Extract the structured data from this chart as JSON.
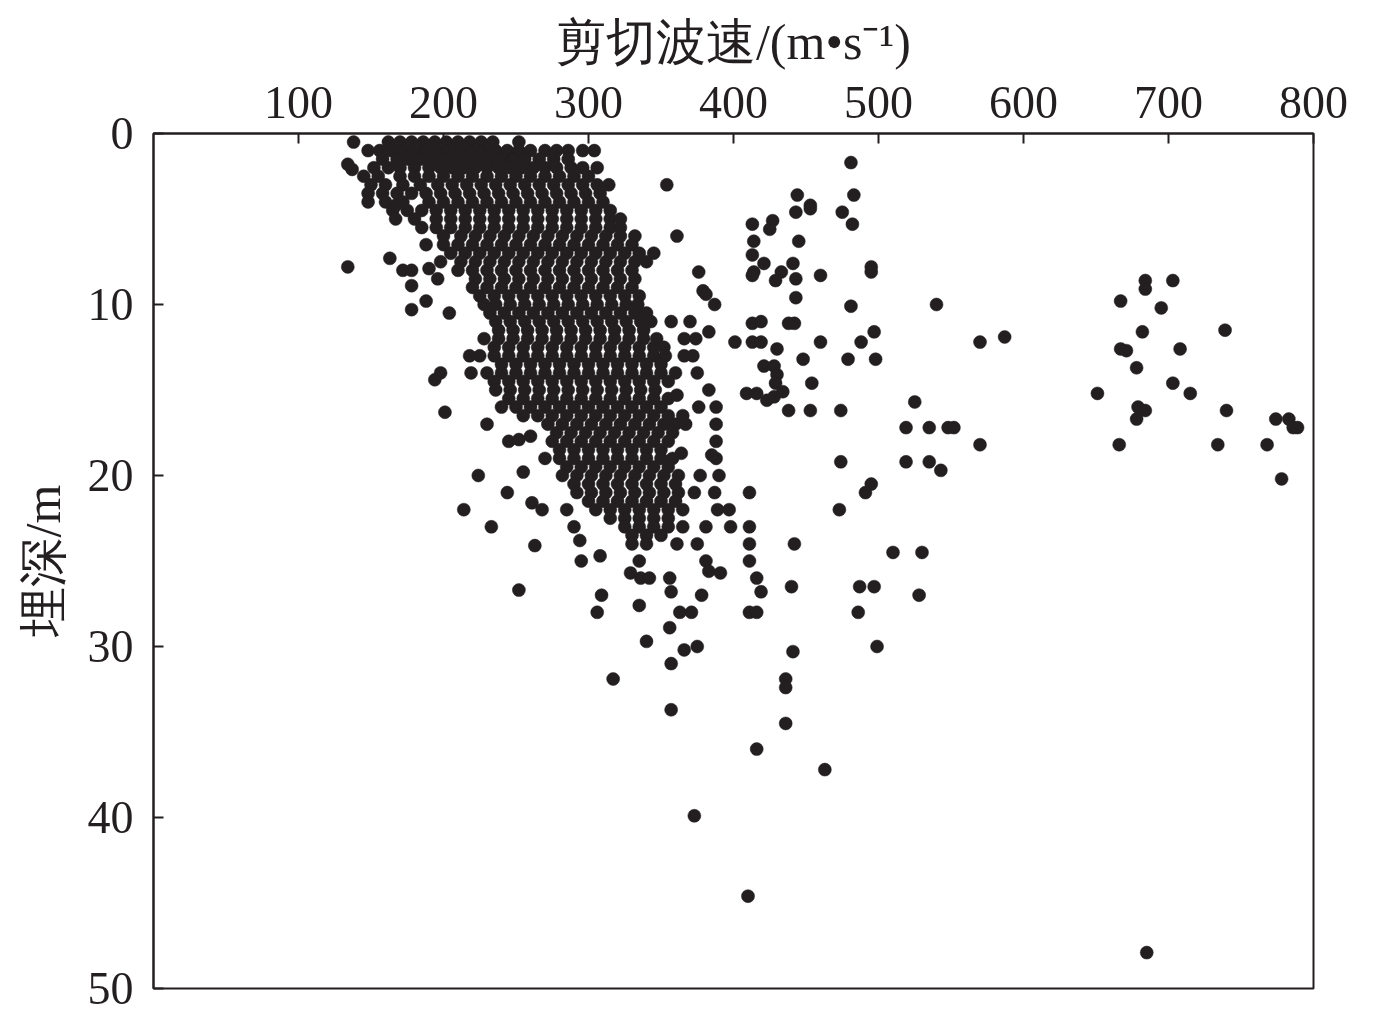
{
  "chart_data": {
    "type": "scatter",
    "xlabel": "剪切波速/(m•s⁻¹)",
    "ylabel": "埋深/m",
    "xlim": [
      0,
      800
    ],
    "ylim": [
      50,
      0
    ],
    "xticks": [
      100,
      200,
      300,
      400,
      500,
      600,
      700,
      800
    ],
    "yticks": [
      0,
      10,
      20,
      30,
      40,
      50
    ],
    "grid": false,
    "marker": "circle",
    "series": [
      {
        "color": "#231f20",
        "x": [
          138,
          162,
          170,
          178,
          186,
          194,
          202,
          210,
          218,
          226,
          234,
          252,
          148,
          156,
          164,
          172,
          180,
          188,
          196,
          204,
          212,
          220,
          228,
          236,
          244,
          252,
          260,
          270,
          278,
          286,
          296,
          304,
          158,
          168,
          176,
          184,
          192,
          200,
          208,
          216,
          224,
          232,
          240,
          248,
          256,
          266,
          276,
          286,
          152,
          162,
          170,
          180,
          190,
          198,
          206,
          214,
          222,
          230,
          238,
          246,
          254,
          262,
          270,
          278,
          288,
          296,
          306,
          145,
          155,
          170,
          180,
          190,
          200,
          210,
          220,
          230,
          240,
          250,
          260,
          270,
          280,
          290,
          300,
          150,
          160,
          172,
          184,
          196,
          206,
          216,
          226,
          236,
          246,
          256,
          266,
          276,
          286,
          296,
          306,
          314,
          354,
          148,
          158,
          168,
          178,
          188,
          198,
          208,
          218,
          228,
          238,
          248,
          258,
          268,
          278,
          288,
          298,
          308,
          148,
          160,
          172,
          190,
          200,
          210,
          220,
          230,
          240,
          250,
          260,
          270,
          280,
          290,
          300,
          310,
          165,
          175,
          185,
          195,
          205,
          215,
          225,
          235,
          245,
          255,
          265,
          275,
          285,
          295,
          305,
          315,
          167,
          180,
          195,
          205,
          215,
          225,
          235,
          245,
          255,
          265,
          275,
          285,
          295,
          305,
          315,
          322,
          185,
          195,
          205,
          215,
          225,
          235,
          245,
          255,
          265,
          275,
          285,
          295,
          305,
          315,
          322,
          200,
          212,
          222,
          232,
          242,
          252,
          262,
          272,
          282,
          292,
          302,
          312,
          322,
          332,
          361,
          200,
          210,
          220,
          230,
          240,
          250,
          260,
          270,
          280,
          290,
          300,
          310,
          320,
          330,
          205,
          215,
          225,
          235,
          245,
          255,
          265,
          275,
          285,
          295,
          305,
          315,
          325,
          335,
          345,
          212,
          222,
          232,
          242,
          252,
          262,
          272,
          282,
          292,
          302,
          312,
          322,
          332,
          340,
          210,
          220,
          230,
          240,
          250,
          260,
          270,
          280,
          290,
          300,
          310,
          320,
          330,
          222,
          232,
          242,
          252,
          262,
          272,
          282,
          292,
          302,
          312,
          322,
          332,
          220,
          230,
          240,
          250,
          260,
          270,
          280,
          290,
          300,
          310,
          320,
          330,
          225,
          235,
          245,
          255,
          265,
          275,
          285,
          295,
          305,
          315,
          325,
          335,
          228,
          236,
          246,
          256,
          266,
          276,
          286,
          296,
          306,
          316,
          326,
          334,
          232,
          242,
          252,
          262,
          272,
          282,
          292,
          302,
          312,
          322,
          332,
          340,
          236,
          246,
          256,
          266,
          276,
          286,
          296,
          306,
          316,
          326,
          336,
          343,
          238,
          248,
          258,
          268,
          278,
          288,
          298,
          308,
          318,
          328,
          338,
          228,
          238,
          248,
          258,
          268,
          278,
          288,
          298,
          308,
          318,
          328,
          338,
          347,
          235,
          245,
          255,
          265,
          275,
          285,
          295,
          305,
          315,
          325,
          335,
          345,
          352,
          235,
          245,
          255,
          265,
          275,
          285,
          295,
          305,
          315,
          325,
          335,
          345,
          353,
          240,
          250,
          260,
          270,
          280,
          290,
          300,
          310,
          320,
          330,
          340,
          350,
          230,
          240,
          250,
          260,
          270,
          280,
          290,
          300,
          310,
          320,
          330,
          340,
          350,
          360,
          235,
          245,
          255,
          265,
          275,
          285,
          295,
          305,
          315,
          325,
          335,
          345,
          355,
          236,
          246,
          256,
          266,
          276,
          286,
          296,
          306,
          316,
          326,
          336,
          346,
          245,
          255,
          265,
          275,
          285,
          295,
          305,
          315,
          325,
          335,
          345,
          355,
          240,
          250,
          260,
          270,
          280,
          290,
          300,
          310,
          320,
          330,
          340,
          350,
          255,
          265,
          275,
          285,
          295,
          305,
          315,
          325,
          335,
          345,
          355,
          365,
          272,
          282,
          292,
          302,
          312,
          322,
          332,
          342,
          352,
          360,
          278,
          288,
          298,
          308,
          318,
          328,
          338,
          348,
          358,
          275,
          285,
          295,
          305,
          315,
          325,
          335,
          345,
          355,
          280,
          290,
          300,
          310,
          320,
          330,
          340,
          350,
          270,
          280,
          290,
          300,
          310,
          320,
          330,
          340,
          350,
          358,
          285,
          295,
          305,
          315,
          325,
          335,
          345,
          355,
          282,
          292,
          302,
          312,
          322,
          332,
          342,
          352,
          362,
          290,
          300,
          310,
          320,
          330,
          340,
          350,
          360,
          292,
          302,
          312,
          322,
          332,
          342,
          352,
          362,
          300,
          310,
          320,
          330,
          340,
          350,
          360,
          305,
          315,
          325,
          335,
          345,
          355,
          365,
          315,
          325,
          335,
          345,
          355,
          325,
          335,
          345,
          355,
          365,
          330,
          340,
          350,
          330,
          340,
          134,
          137,
          167,
          188,
          134,
          163,
          172,
          178,
          178,
          190,
          198,
          196,
          188,
          178,
          204,
          198,
          194,
          201,
          219,
          230,
          245,
          252,
          260,
          218,
          225,
          224,
          255,
          214,
          233,
          244,
          252,
          263,
          261,
          268,
          285,
          290,
          294,
          295,
          308,
          309,
          306,
          317,
          335,
          335,
          329,
          336,
          342,
          340,
          356,
          357,
          356,
          357,
          357,
          366,
          375,
          373,
          363,
          371,
          378,
          361,
          375,
          381,
          383,
          391,
          381,
          398,
          389,
          397,
          387,
          373,
          411,
          411,
          411,
          411,
          416,
          419,
          411,
          416,
          416,
          410,
          442,
          440,
          441,
          436,
          436,
          436,
          463,
          473,
          491,
          495,
          510,
          530,
          487,
          497,
          486,
          528,
          499,
          685,
          387,
          357,
          370,
          383,
          366,
          374,
          366,
          372,
          375,
          383,
          361,
          376,
          388,
          367,
          388,
          388,
          364,
          388,
          377,
          390,
          376,
          379,
          381,
          385,
          481,
          483,
          444,
          453,
          453,
          443,
          475,
          482,
          427,
          425,
          413,
          414,
          445,
          413,
          421,
          441,
          495,
          495,
          414,
          413,
          433,
          429,
          443,
          460,
          443,
          481,
          540,
          413,
          419,
          438,
          442,
          497,
          401,
          413,
          419,
          460,
          488,
          570,
          587,
          430,
          448,
          479,
          498,
          421,
          428,
          430,
          429,
          454,
          409,
          416,
          423,
          428,
          434,
          438,
          453,
          474,
          525,
          519,
          535,
          548,
          552,
          570,
          474,
          519,
          535,
          543,
          684,
          684,
          703,
          667,
          695,
          682,
          739,
          667,
          671,
          708,
          678,
          703,
          715,
          651,
          679,
          684,
          678,
          740,
          666,
          734,
          768,
          774,
          783,
          786,
          789,
          778
        ],
        "values": [
          0.5,
          0.5,
          0.5,
          0.5,
          0.5,
          0.5,
          0.5,
          0.5,
          0.5,
          0.5,
          0.5,
          0.5,
          1,
          1,
          1,
          1,
          1,
          1,
          1,
          1,
          1,
          1,
          1,
          1,
          1,
          1,
          1,
          1,
          1,
          1,
          1,
          1,
          1.5,
          1.5,
          1.5,
          1.5,
          1.5,
          1.5,
          1.5,
          1.5,
          1.5,
          1.5,
          1.5,
          1.5,
          1.5,
          1.5,
          1.5,
          1.5,
          2,
          2,
          2,
          2,
          2,
          2,
          2,
          2,
          2,
          2,
          2,
          2,
          2,
          2,
          2,
          2,
          2,
          2,
          2,
          2.5,
          2.5,
          2.5,
          2.5,
          2.5,
          2.5,
          2.5,
          2.5,
          2.5,
          2.5,
          2.5,
          2.5,
          2.5,
          2.5,
          2.5,
          2.5,
          3,
          3,
          3,
          3,
          3,
          3,
          3,
          3,
          3,
          3,
          3,
          3,
          3,
          3,
          3,
          3,
          3,
          3,
          3.5,
          3.5,
          3.5,
          3.5,
          3.5,
          3.5,
          3.5,
          3.5,
          3.5,
          3.5,
          3.5,
          3.5,
          3.5,
          3.5,
          3.5,
          3.5,
          3.5,
          4,
          4,
          4,
          4,
          4,
          4,
          4,
          4,
          4,
          4,
          4,
          4,
          4,
          4,
          4,
          4,
          4.5,
          4.5,
          4.5,
          4.5,
          4.5,
          4.5,
          4.5,
          4.5,
          4.5,
          4.5,
          4.5,
          4.5,
          4.5,
          4.5,
          4.5,
          4.5,
          5,
          5,
          5,
          5,
          5,
          5,
          5,
          5,
          5,
          5,
          5,
          5,
          5,
          5,
          5,
          5,
          5.5,
          5.5,
          5.5,
          5.5,
          5.5,
          5.5,
          5.5,
          5.5,
          5.5,
          5.5,
          5.5,
          5.5,
          5.5,
          5.5,
          5.5,
          6,
          6,
          6,
          6,
          6,
          6,
          6,
          6,
          6,
          6,
          6,
          6,
          6,
          6,
          6,
          6.5,
          6.5,
          6.5,
          6.5,
          6.5,
          6.5,
          6.5,
          6.5,
          6.5,
          6.5,
          6.5,
          6.5,
          6.5,
          6.5,
          7,
          7,
          7,
          7,
          7,
          7,
          7,
          7,
          7,
          7,
          7,
          7,
          7,
          7,
          7,
          7.5,
          7.5,
          7.5,
          7.5,
          7.5,
          7.5,
          7.5,
          7.5,
          7.5,
          7.5,
          7.5,
          7.5,
          7.5,
          7.5,
          8,
          8,
          8,
          8,
          8,
          8,
          8,
          8,
          8,
          8,
          8,
          8,
          8,
          8.5,
          8.5,
          8.5,
          8.5,
          8.5,
          8.5,
          8.5,
          8.5,
          8.5,
          8.5,
          8.5,
          8.5,
          9,
          9,
          9,
          9,
          9,
          9,
          9,
          9,
          9,
          9,
          9,
          9,
          9.5,
          9.5,
          9.5,
          9.5,
          9.5,
          9.5,
          9.5,
          9.5,
          9.5,
          9.5,
          9.5,
          9.5,
          10,
          10,
          10,
          10,
          10,
          10,
          10,
          10,
          10,
          10,
          10,
          10,
          10.5,
          10.5,
          10.5,
          10.5,
          10.5,
          10.5,
          10.5,
          10.5,
          10.5,
          10.5,
          10.5,
          10.5,
          11,
          11,
          11,
          11,
          11,
          11,
          11,
          11,
          11,
          11,
          11,
          11,
          11.5,
          11.5,
          11.5,
          11.5,
          11.5,
          11.5,
          11.5,
          11.5,
          11.5,
          11.5,
          11.5,
          12,
          12,
          12,
          12,
          12,
          12,
          12,
          12,
          12,
          12,
          12,
          12,
          12,
          12.5,
          12.5,
          12.5,
          12.5,
          12.5,
          12.5,
          12.5,
          12.5,
          12.5,
          12.5,
          12.5,
          12.5,
          12.5,
          13,
          13,
          13,
          13,
          13,
          13,
          13,
          13,
          13,
          13,
          13,
          13,
          13,
          13.5,
          13.5,
          13.5,
          13.5,
          13.5,
          13.5,
          13.5,
          13.5,
          13.5,
          13.5,
          13.5,
          13.5,
          14,
          14,
          14,
          14,
          14,
          14,
          14,
          14,
          14,
          14,
          14,
          14,
          14,
          14,
          14.5,
          14.5,
          14.5,
          14.5,
          14.5,
          14.5,
          14.5,
          14.5,
          14.5,
          14.5,
          14.5,
          14.5,
          14.5,
          15,
          15,
          15,
          15,
          15,
          15,
          15,
          15,
          15,
          15,
          15,
          15,
          15.5,
          15.5,
          15.5,
          15.5,
          15.5,
          15.5,
          15.5,
          15.5,
          15.5,
          15.5,
          15.5,
          15.5,
          16,
          16,
          16,
          16,
          16,
          16,
          16,
          16,
          16,
          16,
          16,
          16,
          16.5,
          16.5,
          16.5,
          16.5,
          16.5,
          16.5,
          16.5,
          16.5,
          16.5,
          16.5,
          16.5,
          16.5,
          17,
          17,
          17,
          17,
          17,
          17,
          17,
          17,
          17,
          17,
          17.5,
          17.5,
          17.5,
          17.5,
          17.5,
          17.5,
          17.5,
          17.5,
          17.5,
          18,
          18,
          18,
          18,
          18,
          18,
          18,
          18,
          18,
          18.5,
          18.5,
          18.5,
          18.5,
          18.5,
          18.5,
          18.5,
          18.5,
          19,
          19,
          19,
          19,
          19,
          19,
          19,
          19,
          19,
          19,
          19.5,
          19.5,
          19.5,
          19.5,
          19.5,
          19.5,
          19.5,
          19.5,
          20,
          20,
          20,
          20,
          20,
          20,
          20,
          20,
          20,
          20.5,
          20.5,
          20.5,
          20.5,
          20.5,
          20.5,
          20.5,
          20.5,
          21,
          21,
          21,
          21,
          21,
          21,
          21,
          21,
          21.5,
          21.5,
          21.5,
          21.5,
          21.5,
          21.5,
          21.5,
          22,
          22,
          22,
          22,
          22,
          22,
          22,
          22.5,
          22.5,
          22.5,
          22.5,
          22.5,
          23,
          23,
          23,
          23,
          23,
          23.5,
          23.5,
          23.5,
          24,
          24,
          1.8,
          2.1,
          4.2,
          6.5,
          7.8,
          7.3,
          8.0,
          8.0,
          8.9,
          7.9,
          7.5,
          8.5,
          9.8,
          10.3,
          10.5,
          14.0,
          14.4,
          16.3,
          14.0,
          17.0,
          18.0,
          17.9,
          17.7,
          13.0,
          13.0,
          20.0,
          19.8,
          22.0,
          23.0,
          21.0,
          26.7,
          24.1,
          21.6,
          22.0,
          22.0,
          23.0,
          23.8,
          25.0,
          24.7,
          27.0,
          28.0,
          31.9,
          27.6,
          25.0,
          25.7,
          26.0,
          26.0,
          29.7,
          26.0,
          26.8,
          28.9,
          31.0,
          33.7,
          30.2,
          30.0,
          39.9,
          28.0,
          28.0,
          27.0,
          24.0,
          24.0,
          25.0,
          25.6,
          25.7,
          23.0,
          23.0,
          22.0,
          22.0,
          21.0,
          21.0,
          21.0,
          23.0,
          24.0,
          25.0,
          26.0,
          26.8,
          28.0,
          28.0,
          36.0,
          44.6,
          24.0,
          26.5,
          30.3,
          31.9,
          32.4,
          34.5,
          37.2,
          22.0,
          21.0,
          20.5,
          24.5,
          24.5,
          26.5,
          26.5,
          28.0,
          27.0,
          30.0,
          47.9,
          10.0,
          11.0,
          11.0,
          11.6,
          12.0,
          12.0,
          13.0,
          13.0,
          14.0,
          15.0,
          15.3,
          16.0,
          16.0,
          17.0,
          17.0,
          18.0,
          18.7,
          19.0,
          20.0,
          20.0,
          8.1,
          9.2,
          9.4,
          18.8,
          1.7,
          3.6,
          3.6,
          4.2,
          4.4,
          4.6,
          4.6,
          5.3,
          5.1,
          5.6,
          5.3,
          6.3,
          6.3,
          7.1,
          7.6,
          7.6,
          7.8,
          8.1,
          8.1,
          8.3,
          8.1,
          8.6,
          8.5,
          8.3,
          9.6,
          10.1,
          10.0,
          11.1,
          11.0,
          11.1,
          11.1,
          11.6,
          12.2,
          12.2,
          12.2,
          12.2,
          12.2,
          12.2,
          11.9,
          12.6,
          13.2,
          13.2,
          13.2,
          13.6,
          13.6,
          14.1,
          14.6,
          14.6,
          15.2,
          15.2,
          15.6,
          15.4,
          15.1,
          16.2,
          16.2,
          16.2,
          15.7,
          17.2,
          17.2,
          17.2,
          17.2,
          18.2,
          19.2,
          19.2,
          19.2,
          19.7,
          8.6,
          9.1,
          8.6,
          9.8,
          10.2,
          11.6,
          11.5,
          12.6,
          12.7,
          12.6,
          13.7,
          14.6,
          15.2,
          15.2,
          16.0,
          16.2,
          16.7,
          16.2,
          18.2,
          18.2,
          18.2,
          16.7,
          16.7,
          17.2,
          17.2,
          20.2
        ]
      }
    ]
  }
}
